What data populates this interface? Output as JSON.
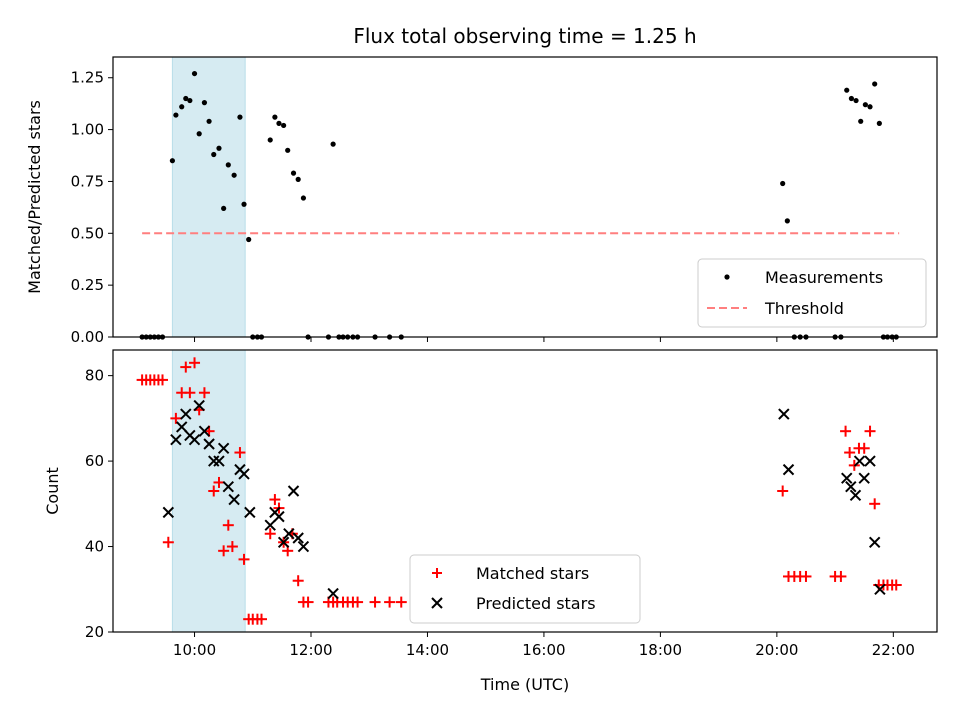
{
  "chart_data": [
    {
      "type": "scatter",
      "title": "Flux total observing time = 1.25 h",
      "xlabel": "",
      "ylabel": "Matched/Predicted stars",
      "ylim": [
        0,
        1.35
      ],
      "yticks": [
        "0.00",
        "0.25",
        "0.50",
        "0.75",
        "1.00",
        "1.25"
      ],
      "ytick_values": [
        0,
        0.25,
        0.5,
        0.75,
        1.0,
        1.25
      ],
      "legend_position": "lower-right",
      "highlight_band": {
        "x": [
          9.62,
          10.87
        ],
        "color": "#add8e6"
      },
      "series": [
        {
          "name": "Measurements",
          "color": "#000000",
          "marker": "dot",
          "points": [
            [
              9.1,
              0
            ],
            [
              9.17,
              0
            ],
            [
              9.24,
              0
            ],
            [
              9.31,
              0
            ],
            [
              9.38,
              0
            ],
            [
              9.45,
              0
            ],
            [
              9.62,
              0.85
            ],
            [
              9.68,
              1.07
            ],
            [
              9.78,
              1.11
            ],
            [
              9.85,
              1.15
            ],
            [
              9.92,
              1.14
            ],
            [
              10.0,
              1.27
            ],
            [
              10.08,
              0.98
            ],
            [
              10.17,
              1.13
            ],
            [
              10.25,
              1.04
            ],
            [
              10.33,
              0.88
            ],
            [
              10.42,
              0.91
            ],
            [
              10.5,
              0.62
            ],
            [
              10.58,
              0.83
            ],
            [
              10.68,
              0.78
            ],
            [
              10.78,
              1.06
            ],
            [
              10.85,
              0.64
            ],
            [
              10.93,
              0.47
            ],
            [
              11.0,
              0
            ],
            [
              11.08,
              0
            ],
            [
              11.15,
              0
            ],
            [
              11.3,
              0.95
            ],
            [
              11.38,
              1.06
            ],
            [
              11.45,
              1.03
            ],
            [
              11.53,
              1.02
            ],
            [
              11.6,
              0.9
            ],
            [
              11.7,
              0.79
            ],
            [
              11.78,
              0.76
            ],
            [
              11.87,
              0.67
            ],
            [
              11.95,
              0
            ],
            [
              12.3,
              0
            ],
            [
              12.38,
              0.93
            ],
            [
              12.48,
              0
            ],
            [
              12.55,
              0
            ],
            [
              12.63,
              0
            ],
            [
              12.72,
              0
            ],
            [
              12.8,
              0
            ],
            [
              13.1,
              0
            ],
            [
              13.35,
              0
            ],
            [
              13.55,
              0
            ],
            [
              20.1,
              0.74
            ],
            [
              20.18,
              0.56
            ],
            [
              20.3,
              0
            ],
            [
              20.4,
              0
            ],
            [
              20.5,
              0
            ],
            [
              21.0,
              0
            ],
            [
              21.1,
              0
            ],
            [
              21.2,
              1.19
            ],
            [
              21.28,
              1.15
            ],
            [
              21.36,
              1.14
            ],
            [
              21.44,
              1.04
            ],
            [
              21.52,
              1.12
            ],
            [
              21.6,
              1.11
            ],
            [
              21.68,
              1.22
            ],
            [
              21.76,
              1.03
            ],
            [
              21.83,
              0
            ],
            [
              21.9,
              0
            ],
            [
              21.98,
              0
            ],
            [
              22.05,
              0
            ]
          ]
        },
        {
          "name": "Threshold",
          "color": "#ff7f7f",
          "style": "dashed",
          "x": [
            9.1,
            22.1
          ],
          "y": [
            0.5,
            0.5
          ]
        }
      ]
    },
    {
      "type": "scatter",
      "title": "",
      "xlabel": "Time (UTC)",
      "ylabel": "Count",
      "ylim": [
        20,
        86
      ],
      "yticks": [
        "20",
        "40",
        "60",
        "80"
      ],
      "ytick_values": [
        20,
        40,
        60,
        80
      ],
      "xlim": [
        8.6,
        22.75
      ],
      "xticks": [
        "10:00",
        "12:00",
        "14:00",
        "16:00",
        "18:00",
        "20:00",
        "22:00"
      ],
      "xtick_values": [
        10,
        12,
        14,
        16,
        18,
        20,
        22
      ],
      "legend_position": "lower-center",
      "highlight_band": {
        "x": [
          9.62,
          10.87
        ],
        "color": "#add8e6"
      },
      "series": [
        {
          "name": "Matched stars",
          "color": "#ff0000",
          "marker": "plus",
          "points": [
            [
              9.1,
              79
            ],
            [
              9.17,
              79
            ],
            [
              9.24,
              79
            ],
            [
              9.31,
              79
            ],
            [
              9.38,
              79
            ],
            [
              9.45,
              79
            ],
            [
              9.55,
              41
            ],
            [
              9.68,
              70
            ],
            [
              9.78,
              76
            ],
            [
              9.85,
              82
            ],
            [
              9.92,
              76
            ],
            [
              10.0,
              83
            ],
            [
              10.08,
              72
            ],
            [
              10.17,
              76
            ],
            [
              10.25,
              67
            ],
            [
              10.33,
              53
            ],
            [
              10.42,
              55
            ],
            [
              10.5,
              39
            ],
            [
              10.58,
              45
            ],
            [
              10.65,
              40
            ],
            [
              10.78,
              62
            ],
            [
              10.85,
              37
            ],
            [
              10.93,
              23
            ],
            [
              11.0,
              23
            ],
            [
              11.08,
              23
            ],
            [
              11.15,
              23
            ],
            [
              11.3,
              43
            ],
            [
              11.38,
              51
            ],
            [
              11.45,
              49
            ],
            [
              11.53,
              41
            ],
            [
              11.6,
              39
            ],
            [
              11.68,
              43
            ],
            [
              11.78,
              32
            ],
            [
              11.87,
              27
            ],
            [
              11.95,
              27
            ],
            [
              12.3,
              27
            ],
            [
              12.38,
              27
            ],
            [
              12.45,
              27
            ],
            [
              12.55,
              27
            ],
            [
              12.63,
              27
            ],
            [
              12.72,
              27
            ],
            [
              12.8,
              27
            ],
            [
              13.1,
              27
            ],
            [
              13.35,
              27
            ],
            [
              13.55,
              27
            ],
            [
              20.1,
              53
            ],
            [
              20.2,
              33
            ],
            [
              20.3,
              33
            ],
            [
              20.4,
              33
            ],
            [
              20.5,
              33
            ],
            [
              21.0,
              33
            ],
            [
              21.1,
              33
            ],
            [
              21.18,
              67
            ],
            [
              21.25,
              62
            ],
            [
              21.33,
              59
            ],
            [
              21.41,
              63
            ],
            [
              21.5,
              63
            ],
            [
              21.6,
              67
            ],
            [
              21.68,
              50
            ],
            [
              21.75,
              31
            ],
            [
              21.83,
              31
            ],
            [
              21.9,
              31
            ],
            [
              21.98,
              31
            ],
            [
              22.05,
              31
            ]
          ]
        },
        {
          "name": "Predicted stars",
          "color": "#000000",
          "marker": "x",
          "points": [
            [
              9.55,
              48
            ],
            [
              9.68,
              65
            ],
            [
              9.78,
              68
            ],
            [
              9.85,
              71
            ],
            [
              9.92,
              66
            ],
            [
              10.0,
              65
            ],
            [
              10.08,
              73
            ],
            [
              10.17,
              67
            ],
            [
              10.25,
              64
            ],
            [
              10.33,
              60
            ],
            [
              10.42,
              60
            ],
            [
              10.5,
              63
            ],
            [
              10.58,
              54
            ],
            [
              10.68,
              51
            ],
            [
              10.78,
              58
            ],
            [
              10.85,
              57
            ],
            [
              10.95,
              48
            ],
            [
              11.3,
              45
            ],
            [
              11.38,
              48
            ],
            [
              11.45,
              47
            ],
            [
              11.53,
              41
            ],
            [
              11.62,
              43
            ],
            [
              11.7,
              53
            ],
            [
              11.78,
              42
            ],
            [
              11.87,
              40
            ],
            [
              12.38,
              29
            ],
            [
              20.12,
              71
            ],
            [
              20.2,
              58
            ],
            [
              21.2,
              56
            ],
            [
              21.27,
              54
            ],
            [
              21.35,
              52
            ],
            [
              21.42,
              60
            ],
            [
              21.5,
              56
            ],
            [
              21.6,
              60
            ],
            [
              21.68,
              41
            ],
            [
              21.77,
              30
            ]
          ]
        }
      ]
    }
  ]
}
